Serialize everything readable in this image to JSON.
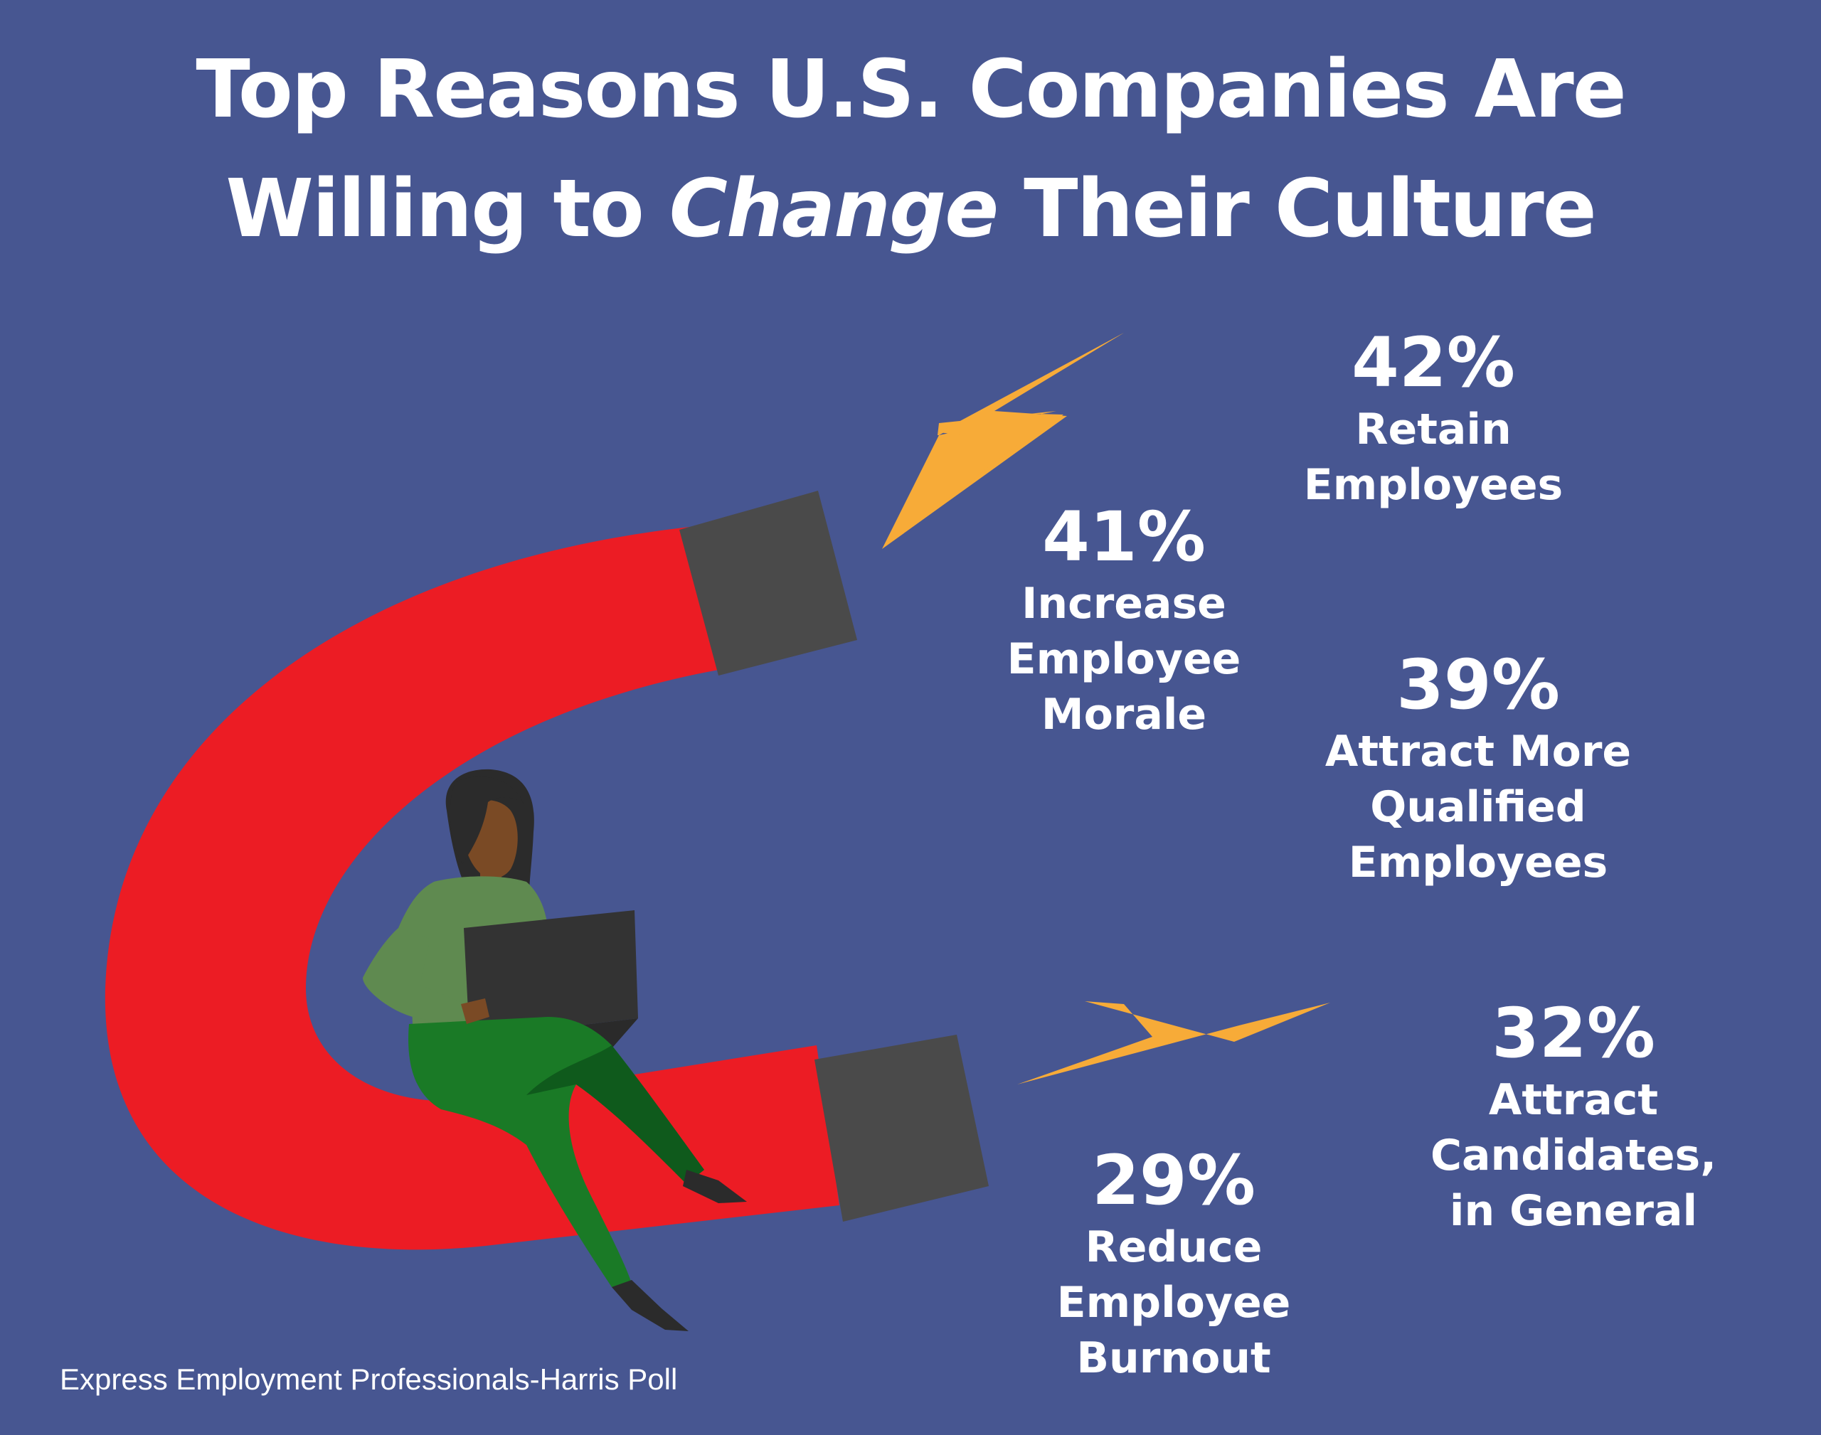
{
  "title": {
    "line1": "Top Reasons U.S. Companies Are",
    "line2_pre": "Willing to ",
    "line2_em": "Change",
    "line2_post": " Their Culture"
  },
  "chart_data": {
    "type": "infographic",
    "title": "Top Reasons U.S. Companies Are Willing to Change Their Culture",
    "unit": "%",
    "items": [
      {
        "value": 42,
        "label": "Retain Employees",
        "display": "42%",
        "label_lines": [
          "Retain",
          "Employees"
        ]
      },
      {
        "value": 41,
        "label": "Increase Employee Morale",
        "display": "41%",
        "label_lines": [
          "Increase",
          "Employee",
          "Morale"
        ]
      },
      {
        "value": 39,
        "label": "Attract More Qualified Employees",
        "display": "39%",
        "label_lines": [
          "Attract More",
          "Qualified",
          "Employees"
        ]
      },
      {
        "value": 32,
        "label": "Attract Candidates, in General",
        "display": "32%",
        "label_lines": [
          "Attract",
          "Candidates,",
          "in General"
        ]
      },
      {
        "value": 29,
        "label": "Reduce Employee Burnout",
        "display": "29%",
        "label_lines": [
          "Reduce",
          "Employee",
          "Burnout"
        ]
      }
    ],
    "source": "Express Employment Professionals-Harris Poll"
  },
  "colors": {
    "background": "#475691",
    "magnet": "#ec1c24",
    "magnet_tip": "#4a4a4a",
    "bolt": "#f7ab38",
    "text": "#ffffff",
    "shirt": "#5f8a50",
    "pants": "#1a7a26",
    "skin": "#7a4a25",
    "hair": "#2b2b2b",
    "laptop": "#333333"
  },
  "illustration": {
    "magnet_icon": "horseshoe-magnet-icon",
    "bolt_icon": "lightning-bolt-icon",
    "person_icon": "woman-with-laptop-icon"
  }
}
